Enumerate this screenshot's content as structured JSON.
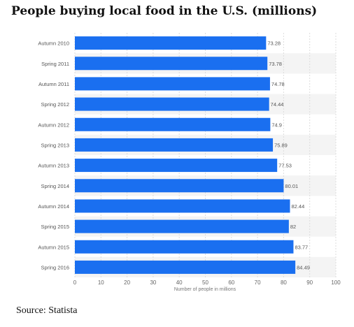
{
  "title": "People buying local food in the U.S. (millions)",
  "source": "Source: Statista",
  "chart_data": {
    "type": "bar",
    "orientation": "horizontal",
    "categories": [
      "Autumn 2010",
      "Spring 2011",
      "Autumn 2011",
      "Spring 2012",
      "Autumn 2012",
      "Spring 2013",
      "Autumn 2013",
      "Spring 2014",
      "Autumn 2014",
      "Spring 2015",
      "Autumn 2015",
      "Spring 2016"
    ],
    "values": [
      73.28,
      73.78,
      74.78,
      74.44,
      74.9,
      75.89,
      77.53,
      80.01,
      82.44,
      82,
      83.77,
      84.49
    ],
    "value_labels": [
      "73.28",
      "73.78",
      "74.78",
      "74.44",
      "74.9",
      "75.89",
      "77.53",
      "80.01",
      "82.44",
      "82",
      "83.77",
      "84.49"
    ],
    "xlabel": "Number of people in millions",
    "xlim": [
      0,
      100
    ],
    "xticks": [
      "0",
      "10",
      "20",
      "30",
      "40",
      "50",
      "60",
      "70",
      "80",
      "90",
      "100"
    ],
    "grid": true,
    "bar_color": "#1a6ff0",
    "alt_row_color": "#f4f4f4"
  }
}
